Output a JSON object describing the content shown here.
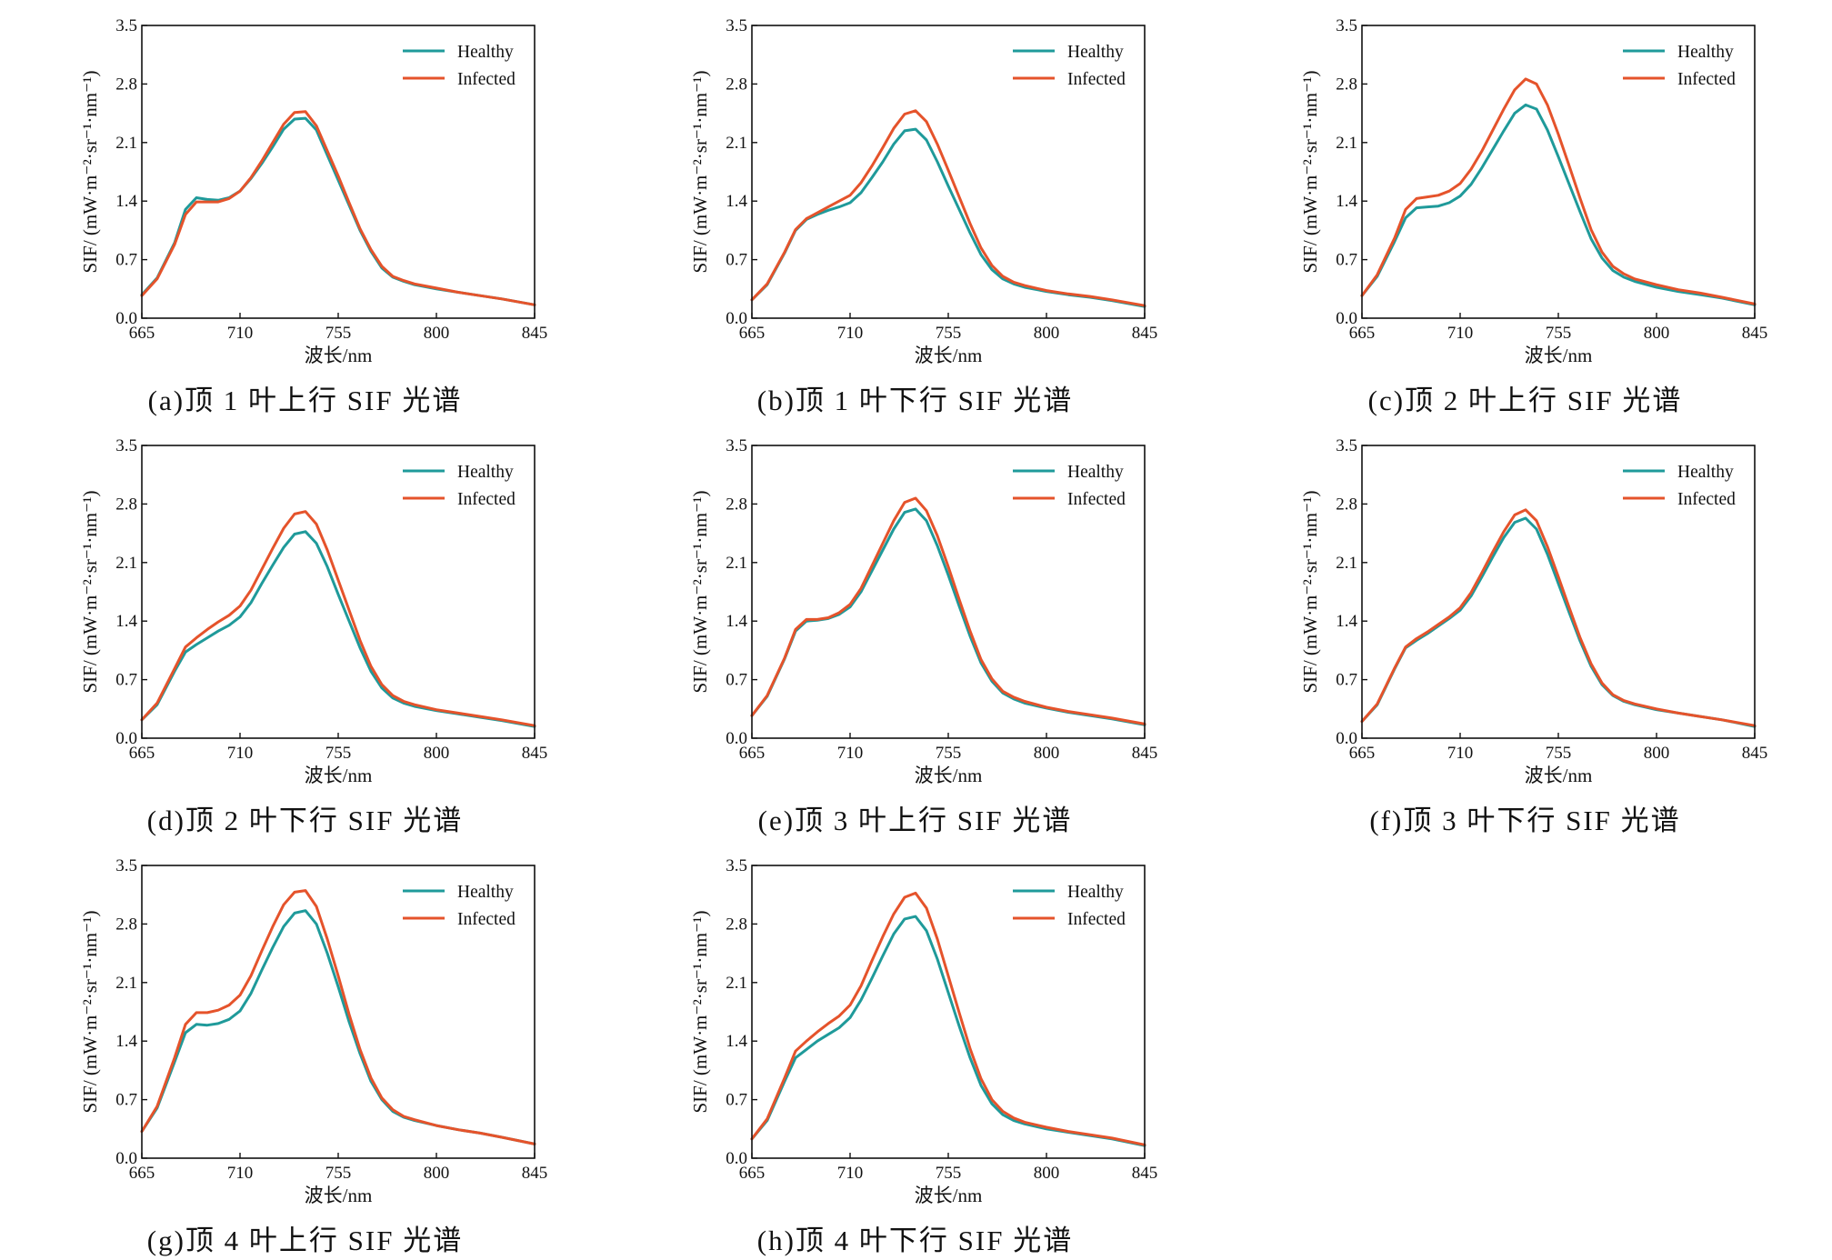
{
  "chart_data": [
    {
      "type": "line",
      "caption": "(a)顶 1 叶上行 SIF 光谱",
      "xlabel": "波长/nm",
      "ylabel": "SIF/ (mW·m⁻²·sr⁻¹·nm⁻¹)",
      "xlim": [
        665,
        845
      ],
      "ylim": [
        0,
        3.5
      ],
      "xticks": [
        "665",
        "710",
        "755",
        "800",
        "845"
      ],
      "yticks": [
        "0.0",
        "0.7",
        "1.4",
        "2.1",
        "2.8",
        "3.5"
      ],
      "legend_position": "top-right",
      "x": [
        665,
        672,
        680,
        685,
        690,
        695,
        700,
        705,
        710,
        715,
        720,
        725,
        730,
        735,
        740,
        745,
        750,
        755,
        760,
        765,
        770,
        775,
        780,
        785,
        790,
        800,
        810,
        820,
        830,
        845
      ],
      "series": [
        {
          "name": "Healthy",
          "color": "#1f9a9a",
          "values": [
            0.28,
            0.48,
            0.9,
            1.3,
            1.44,
            1.42,
            1.41,
            1.44,
            1.52,
            1.67,
            1.85,
            2.05,
            2.26,
            2.38,
            2.39,
            2.25,
            1.95,
            1.65,
            1.35,
            1.05,
            0.8,
            0.6,
            0.49,
            0.44,
            0.4,
            0.35,
            0.31,
            0.27,
            0.23,
            0.16
          ]
        },
        {
          "name": "Infected",
          "color": "#e5532b",
          "values": [
            0.27,
            0.47,
            0.88,
            1.24,
            1.39,
            1.39,
            1.39,
            1.43,
            1.52,
            1.68,
            1.88,
            2.1,
            2.32,
            2.46,
            2.47,
            2.3,
            2.0,
            1.7,
            1.38,
            1.07,
            0.82,
            0.62,
            0.5,
            0.45,
            0.41,
            0.36,
            0.31,
            0.27,
            0.23,
            0.16
          ]
        }
      ]
    },
    {
      "type": "line",
      "caption": "(b)顶 1 叶下行 SIF 光谱",
      "xlabel": "波长/nm",
      "ylabel": "SIF/ (mW·m⁻²·sr⁻¹·nm⁻¹)",
      "xlim": [
        665,
        845
      ],
      "ylim": [
        0,
        3.5
      ],
      "xticks": [
        "665",
        "710",
        "755",
        "800",
        "845"
      ],
      "yticks": [
        "0.0",
        "0.7",
        "1.4",
        "2.1",
        "2.8",
        "3.5"
      ],
      "legend_position": "top-right",
      "x": [
        665,
        672,
        680,
        685,
        690,
        695,
        700,
        705,
        710,
        715,
        720,
        725,
        730,
        735,
        740,
        745,
        750,
        755,
        760,
        765,
        770,
        775,
        780,
        785,
        790,
        800,
        810,
        820,
        830,
        845
      ],
      "series": [
        {
          "name": "Healthy",
          "color": "#1f9a9a",
          "values": [
            0.22,
            0.4,
            0.78,
            1.05,
            1.18,
            1.24,
            1.29,
            1.33,
            1.38,
            1.5,
            1.68,
            1.87,
            2.08,
            2.24,
            2.26,
            2.13,
            1.87,
            1.58,
            1.3,
            1.02,
            0.76,
            0.58,
            0.47,
            0.41,
            0.37,
            0.32,
            0.28,
            0.25,
            0.21,
            0.14
          ]
        },
        {
          "name": "Infected",
          "color": "#e5532b",
          "values": [
            0.22,
            0.41,
            0.79,
            1.06,
            1.19,
            1.26,
            1.33,
            1.4,
            1.47,
            1.62,
            1.82,
            2.04,
            2.27,
            2.44,
            2.48,
            2.35,
            2.08,
            1.77,
            1.45,
            1.13,
            0.84,
            0.63,
            0.5,
            0.43,
            0.39,
            0.33,
            0.29,
            0.26,
            0.22,
            0.15
          ]
        }
      ]
    },
    {
      "type": "line",
      "caption": "(c)顶 2 叶上行 SIF 光谱",
      "xlabel": "波长/nm",
      "ylabel": "SIF/ (mW·m⁻²·sr⁻¹·nm⁻¹)",
      "xlim": [
        665,
        845
      ],
      "ylim": [
        0,
        3.5
      ],
      "xticks": [
        "665",
        "710",
        "755",
        "800",
        "845"
      ],
      "yticks": [
        "0.0",
        "0.7",
        "1.4",
        "2.1",
        "2.8",
        "3.5"
      ],
      "legend_position": "top-right",
      "x": [
        665,
        672,
        680,
        685,
        690,
        695,
        700,
        705,
        710,
        715,
        720,
        725,
        730,
        735,
        740,
        745,
        750,
        755,
        760,
        765,
        770,
        775,
        780,
        785,
        790,
        800,
        810,
        820,
        830,
        845
      ],
      "series": [
        {
          "name": "Healthy",
          "color": "#1f9a9a",
          "values": [
            0.27,
            0.5,
            0.92,
            1.2,
            1.32,
            1.33,
            1.34,
            1.38,
            1.46,
            1.6,
            1.8,
            2.02,
            2.24,
            2.45,
            2.55,
            2.5,
            2.25,
            1.93,
            1.6,
            1.27,
            0.95,
            0.72,
            0.57,
            0.49,
            0.44,
            0.37,
            0.32,
            0.28,
            0.24,
            0.16
          ]
        },
        {
          "name": "Infected",
          "color": "#e5532b",
          "values": [
            0.27,
            0.52,
            0.96,
            1.3,
            1.43,
            1.45,
            1.47,
            1.52,
            1.61,
            1.78,
            2.0,
            2.25,
            2.5,
            2.73,
            2.86,
            2.8,
            2.55,
            2.2,
            1.82,
            1.43,
            1.06,
            0.79,
            0.62,
            0.53,
            0.47,
            0.4,
            0.34,
            0.3,
            0.25,
            0.17
          ]
        }
      ]
    },
    {
      "type": "line",
      "caption": "(d)顶 2 叶下行 SIF 光谱",
      "xlabel": "波长/nm",
      "ylabel": "SIF/ (mW·m⁻²·sr⁻¹·nm⁻¹)",
      "xlim": [
        665,
        845
      ],
      "ylim": [
        0,
        3.5
      ],
      "xticks": [
        "665",
        "710",
        "755",
        "800",
        "845"
      ],
      "yticks": [
        "0.0",
        "0.7",
        "1.4",
        "2.1",
        "2.8",
        "3.5"
      ],
      "legend_position": "top-right",
      "x": [
        665,
        672,
        680,
        685,
        690,
        695,
        700,
        705,
        710,
        715,
        720,
        725,
        730,
        735,
        740,
        745,
        750,
        755,
        760,
        765,
        770,
        775,
        780,
        785,
        790,
        800,
        810,
        820,
        830,
        845
      ],
      "series": [
        {
          "name": "Healthy",
          "color": "#1f9a9a",
          "values": [
            0.22,
            0.4,
            0.8,
            1.03,
            1.12,
            1.2,
            1.28,
            1.35,
            1.45,
            1.62,
            1.85,
            2.07,
            2.28,
            2.44,
            2.47,
            2.33,
            2.05,
            1.72,
            1.4,
            1.08,
            0.8,
            0.6,
            0.48,
            0.42,
            0.38,
            0.33,
            0.29,
            0.25,
            0.21,
            0.14
          ]
        },
        {
          "name": "Infected",
          "color": "#e5532b",
          "values": [
            0.22,
            0.42,
            0.83,
            1.09,
            1.2,
            1.3,
            1.39,
            1.47,
            1.58,
            1.77,
            2.02,
            2.27,
            2.51,
            2.68,
            2.71,
            2.56,
            2.25,
            1.89,
            1.53,
            1.17,
            0.86,
            0.64,
            0.51,
            0.44,
            0.4,
            0.34,
            0.3,
            0.26,
            0.22,
            0.15
          ]
        }
      ]
    },
    {
      "type": "line",
      "caption": "(e)顶 3 叶上行 SIF 光谱",
      "xlabel": "波长/nm",
      "ylabel": "SIF/ (mW·m⁻²·sr⁻¹·nm⁻¹)",
      "xlim": [
        665,
        845
      ],
      "ylim": [
        0,
        3.5
      ],
      "xticks": [
        "665",
        "710",
        "755",
        "800",
        "845"
      ],
      "yticks": [
        "0.0",
        "0.7",
        "1.4",
        "2.1",
        "2.8",
        "3.5"
      ],
      "legend_position": "top-right",
      "x": [
        665,
        672,
        680,
        685,
        690,
        695,
        700,
        705,
        710,
        715,
        720,
        725,
        730,
        735,
        740,
        745,
        750,
        755,
        760,
        765,
        770,
        775,
        780,
        785,
        790,
        800,
        810,
        820,
        830,
        845
      ],
      "series": [
        {
          "name": "Healthy",
          "color": "#1f9a9a",
          "values": [
            0.27,
            0.5,
            0.95,
            1.28,
            1.4,
            1.41,
            1.43,
            1.48,
            1.57,
            1.75,
            2.0,
            2.25,
            2.5,
            2.7,
            2.74,
            2.6,
            2.3,
            1.95,
            1.58,
            1.22,
            0.9,
            0.68,
            0.54,
            0.47,
            0.42,
            0.36,
            0.31,
            0.27,
            0.23,
            0.16
          ]
        },
        {
          "name": "Infected",
          "color": "#e5532b",
          "values": [
            0.27,
            0.51,
            0.96,
            1.3,
            1.42,
            1.42,
            1.44,
            1.5,
            1.6,
            1.79,
            2.06,
            2.33,
            2.6,
            2.82,
            2.87,
            2.72,
            2.42,
            2.05,
            1.66,
            1.28,
            0.94,
            0.71,
            0.56,
            0.49,
            0.44,
            0.37,
            0.32,
            0.28,
            0.24,
            0.17
          ]
        }
      ]
    },
    {
      "type": "line",
      "caption": "(f)顶 3 叶下行 SIF 光谱",
      "xlabel": "波长/nm",
      "ylabel": "SIF/ (mW·m⁻²·sr⁻¹·nm⁻¹)",
      "xlim": [
        665,
        845
      ],
      "ylim": [
        0,
        3.5
      ],
      "xticks": [
        "665",
        "710",
        "755",
        "800",
        "845"
      ],
      "yticks": [
        "0.0",
        "0.7",
        "1.4",
        "2.1",
        "2.8",
        "3.5"
      ],
      "legend_position": "top-right",
      "x": [
        665,
        672,
        680,
        685,
        690,
        695,
        700,
        705,
        710,
        715,
        720,
        725,
        730,
        735,
        740,
        745,
        750,
        755,
        760,
        765,
        770,
        775,
        780,
        785,
        790,
        800,
        810,
        820,
        830,
        845
      ],
      "series": [
        {
          "name": "Healthy",
          "color": "#1f9a9a",
          "values": [
            0.2,
            0.4,
            0.83,
            1.08,
            1.17,
            1.25,
            1.34,
            1.43,
            1.53,
            1.7,
            1.93,
            2.17,
            2.4,
            2.58,
            2.63,
            2.5,
            2.2,
            1.85,
            1.5,
            1.16,
            0.86,
            0.64,
            0.51,
            0.44,
            0.4,
            0.34,
            0.3,
            0.26,
            0.22,
            0.14
          ]
        },
        {
          "name": "Infected",
          "color": "#e5532b",
          "values": [
            0.2,
            0.41,
            0.84,
            1.09,
            1.19,
            1.27,
            1.36,
            1.45,
            1.56,
            1.74,
            1.98,
            2.23,
            2.47,
            2.67,
            2.73,
            2.6,
            2.29,
            1.93,
            1.56,
            1.2,
            0.89,
            0.66,
            0.52,
            0.45,
            0.41,
            0.35,
            0.3,
            0.26,
            0.22,
            0.15
          ]
        }
      ]
    },
    {
      "type": "line",
      "caption": "(g)顶 4 叶上行 SIF 光谱",
      "xlabel": "波长/nm",
      "ylabel": "SIF/ (mW·m⁻²·sr⁻¹·nm⁻¹)",
      "xlim": [
        665,
        845
      ],
      "ylim": [
        0,
        3.5
      ],
      "xticks": [
        "665",
        "710",
        "755",
        "800",
        "845"
      ],
      "yticks": [
        "0.0",
        "0.7",
        "1.4",
        "2.1",
        "2.8",
        "3.5"
      ],
      "legend_position": "top-right",
      "x": [
        665,
        672,
        680,
        685,
        690,
        695,
        700,
        705,
        710,
        715,
        720,
        725,
        730,
        735,
        740,
        745,
        750,
        755,
        760,
        765,
        770,
        775,
        780,
        785,
        790,
        800,
        810,
        820,
        830,
        845
      ],
      "series": [
        {
          "name": "Healthy",
          "color": "#1f9a9a",
          "values": [
            0.32,
            0.6,
            1.15,
            1.5,
            1.6,
            1.59,
            1.61,
            1.66,
            1.76,
            1.97,
            2.25,
            2.52,
            2.77,
            2.93,
            2.96,
            2.8,
            2.45,
            2.05,
            1.63,
            1.25,
            0.92,
            0.7,
            0.56,
            0.49,
            0.45,
            0.39,
            0.34,
            0.3,
            0.25,
            0.17
          ]
        },
        {
          "name": "Infected",
          "color": "#e5532b",
          "values": [
            0.32,
            0.62,
            1.2,
            1.6,
            1.74,
            1.74,
            1.77,
            1.83,
            1.95,
            2.18,
            2.48,
            2.77,
            3.03,
            3.18,
            3.2,
            3.01,
            2.62,
            2.18,
            1.72,
            1.3,
            0.96,
            0.72,
            0.58,
            0.5,
            0.46,
            0.39,
            0.34,
            0.3,
            0.25,
            0.17
          ]
        }
      ]
    },
    {
      "type": "line",
      "caption": "(h)顶 4 叶下行 SIF 光谱",
      "xlabel": "波长/nm",
      "ylabel": "SIF/ (mW·m⁻²·sr⁻¹·nm⁻¹)",
      "xlim": [
        665,
        845
      ],
      "ylim": [
        0,
        3.5
      ],
      "xticks": [
        "665",
        "710",
        "755",
        "800",
        "845"
      ],
      "yticks": [
        "0.0",
        "0.7",
        "1.4",
        "2.1",
        "2.8",
        "3.5"
      ],
      "legend_position": "top-right",
      "x": [
        665,
        672,
        680,
        685,
        690,
        695,
        700,
        705,
        710,
        715,
        720,
        725,
        730,
        735,
        740,
        745,
        750,
        755,
        760,
        765,
        770,
        775,
        780,
        785,
        790,
        800,
        810,
        820,
        830,
        845
      ],
      "series": [
        {
          "name": "Healthy",
          "color": "#1f9a9a",
          "values": [
            0.23,
            0.45,
            0.92,
            1.2,
            1.3,
            1.4,
            1.48,
            1.56,
            1.68,
            1.89,
            2.15,
            2.42,
            2.68,
            2.86,
            2.89,
            2.72,
            2.38,
            1.98,
            1.58,
            1.2,
            0.87,
            0.65,
            0.52,
            0.45,
            0.41,
            0.35,
            0.31,
            0.27,
            0.23,
            0.15
          ]
        },
        {
          "name": "Infected",
          "color": "#e5532b",
          "values": [
            0.23,
            0.47,
            0.96,
            1.28,
            1.4,
            1.51,
            1.61,
            1.7,
            1.83,
            2.06,
            2.36,
            2.65,
            2.92,
            3.12,
            3.17,
            2.99,
            2.62,
            2.18,
            1.74,
            1.31,
            0.95,
            0.7,
            0.56,
            0.48,
            0.43,
            0.37,
            0.32,
            0.28,
            0.24,
            0.16
          ]
        }
      ]
    }
  ]
}
